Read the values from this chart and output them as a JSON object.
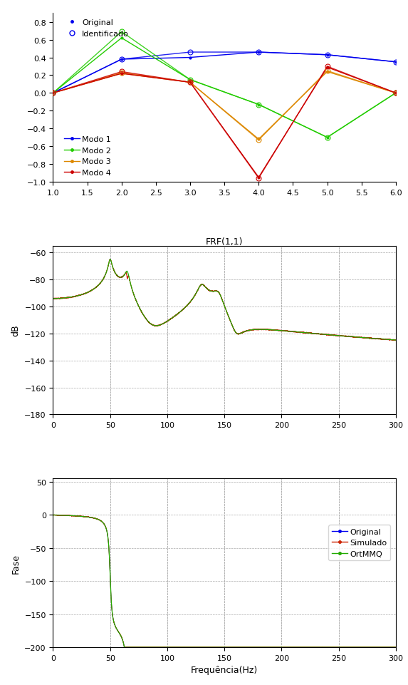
{
  "modes": {
    "x": [
      1,
      2,
      3,
      4,
      5,
      6
    ],
    "m1o": [
      0.0,
      0.38,
      0.4,
      0.46,
      0.43,
      0.35
    ],
    "m2o": [
      0.0,
      0.62,
      0.15,
      -0.13,
      -0.5,
      0.0
    ],
    "m3o": [
      0.0,
      0.22,
      0.12,
      -0.52,
      0.24,
      0.0
    ],
    "m4o": [
      0.0,
      0.22,
      0.12,
      -0.95,
      0.29,
      0.0
    ],
    "m1i": [
      0.0,
      0.38,
      0.46,
      0.46,
      0.43,
      0.35
    ],
    "m2i": [
      0.0,
      0.69,
      0.15,
      -0.13,
      -0.5,
      0.0
    ],
    "m3i": [
      0.0,
      0.23,
      0.12,
      -0.53,
      0.25,
      0.0
    ],
    "m4i": [
      0.0,
      0.24,
      0.12,
      -0.96,
      0.3,
      0.0
    ],
    "xlim": [
      1,
      6
    ],
    "ylim": [
      -1.0,
      0.9
    ],
    "yticks": [
      -1.0,
      -0.8,
      -0.6,
      -0.4,
      -0.2,
      0.0,
      0.2,
      0.4,
      0.6,
      0.8
    ],
    "xticks": [
      1.0,
      1.5,
      2.0,
      2.5,
      3.0,
      3.5,
      4.0,
      4.5,
      5.0,
      5.5,
      6.0
    ]
  },
  "frf": {
    "resonances": [
      50.0,
      65.0,
      130.0,
      145.0
    ],
    "zetas": [
      0.025,
      0.025,
      0.025,
      0.025
    ],
    "residues": [
      1.0,
      -0.6,
      0.8,
      -0.5
    ],
    "ylim": [
      -180,
      -55
    ],
    "yticks": [
      -180,
      -160,
      -140,
      -120,
      -100,
      -80,
      -60
    ],
    "xticks": [
      0,
      50,
      100,
      150,
      200,
      250,
      300
    ],
    "xlim": [
      0,
      300
    ],
    "title": "FRF(1,1)",
    "ylabel": "dB"
  },
  "phase": {
    "resonances": [
      50.0,
      65.0,
      130.0,
      145.0
    ],
    "zetas": [
      0.025,
      0.025,
      0.025,
      0.025
    ],
    "residues": [
      1.0,
      -0.6,
      0.8,
      -0.5
    ],
    "ylim": [
      -200,
      55
    ],
    "yticks": [
      -200,
      -150,
      -100,
      -50,
      0,
      50
    ],
    "xticks": [
      0,
      50,
      100,
      150,
      200,
      250,
      300
    ],
    "xlim": [
      0,
      300
    ],
    "xlabel": "Frequência(Hz)",
    "ylabel": "Fase"
  },
  "colors": {
    "mode1": "#0000ee",
    "mode2": "#22cc00",
    "mode3": "#dd8800",
    "mode4": "#cc0000",
    "frf_green": "#22aa00",
    "frf_red": "#cc2200",
    "frf_blue": "#0000cc",
    "original_line": "#0000ee",
    "simulado_line": "#cc2200",
    "ortmmq_line": "#22aa00",
    "grid_color": "#aaaaaa"
  },
  "legend1": {
    "original": "Original",
    "identificado": "Identificado"
  },
  "legend2": {
    "modo1": "Modo 1",
    "modo2": "Modo 2",
    "modo3": "Modo 3",
    "modo4": "Modo 4"
  },
  "legend3": {
    "original": "Original",
    "simulado": "Simulado",
    "ortmmq": "OrtMMQ"
  }
}
